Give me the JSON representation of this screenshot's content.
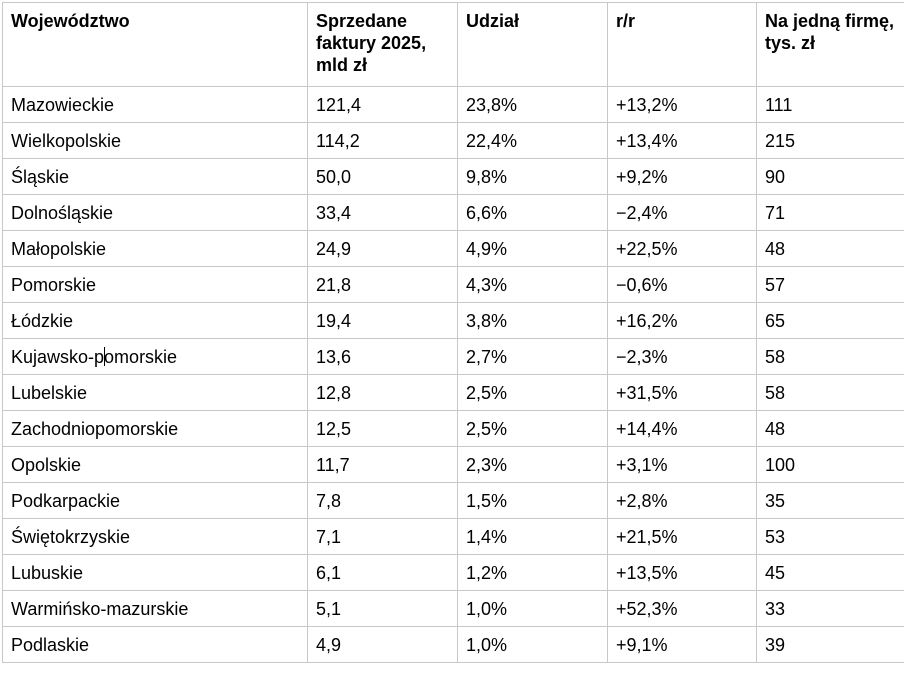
{
  "table": {
    "headers": [
      "Województwo",
      "Sprzedane faktury 2025, mld zł",
      "Udział",
      "r/r",
      "Na jedną firmę, tys. zł"
    ],
    "rows": [
      [
        "Mazowieckie",
        "121,4",
        "23,8%",
        "+13,2%",
        "111"
      ],
      [
        "Wielkopolskie",
        "114,2",
        "22,4%",
        "+13,4%",
        "215"
      ],
      [
        "Śląskie",
        "50,0",
        "9,8%",
        "+9,2%",
        "90"
      ],
      [
        "Dolnośląskie",
        "33,4",
        "6,6%",
        "−2,4%",
        "71"
      ],
      [
        "Małopolskie",
        "24,9",
        "4,9%",
        "+22,5%",
        "48"
      ],
      [
        "Pomorskie",
        "21,8",
        "4,3%",
        "−0,6%",
        "57"
      ],
      [
        "Łódzkie",
        "19,4",
        "3,8%",
        "+16,2%",
        "65"
      ],
      [
        "Kujawsko-pomorskie",
        "13,6",
        "2,7%",
        "−2,3%",
        "58"
      ],
      [
        "Lubelskie",
        "12,8",
        "2,5%",
        "+31,5%",
        "58"
      ],
      [
        "Zachodniopomorskie",
        "12,5",
        "2,5%",
        "+14,4%",
        "48"
      ],
      [
        "Opolskie",
        "11,7",
        "2,3%",
        "+3,1%",
        "100"
      ],
      [
        "Podkarpackie",
        "7,8",
        "1,5%",
        "+2,8%",
        "35"
      ],
      [
        "Świętokrzyskie",
        "7,1",
        "1,4%",
        "+21,5%",
        "53"
      ],
      [
        "Lubuskie",
        "6,1",
        "1,2%",
        "+13,5%",
        "45"
      ],
      [
        "Warmińsko-mazurskie",
        "5,1",
        "1,0%",
        "+52,3%",
        "33"
      ],
      [
        "Podlaskie",
        "4,9",
        "1,0%",
        "+9,1%",
        "39"
      ]
    ]
  }
}
